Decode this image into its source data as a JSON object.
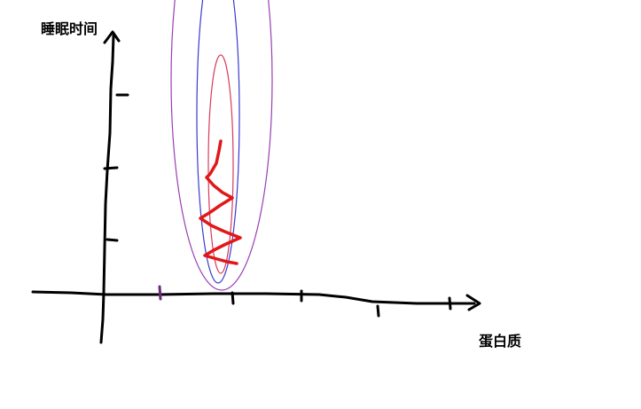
{
  "diagram": {
    "y_axis_label": "睡眠时间",
    "x_axis_label": "蛋白质",
    "colors": {
      "background": "#ffffff",
      "axes": "#000000",
      "contour_outer": "#9a3fb0",
      "contour_middle": "#3a3ad0",
      "contour_inner": "#d83a5a",
      "descent_path": "#e01818",
      "tick_accent": "#6a2a7a"
    },
    "contours": [
      "outer",
      "middle",
      "inner"
    ],
    "descent_path_shape": "zigzag"
  }
}
